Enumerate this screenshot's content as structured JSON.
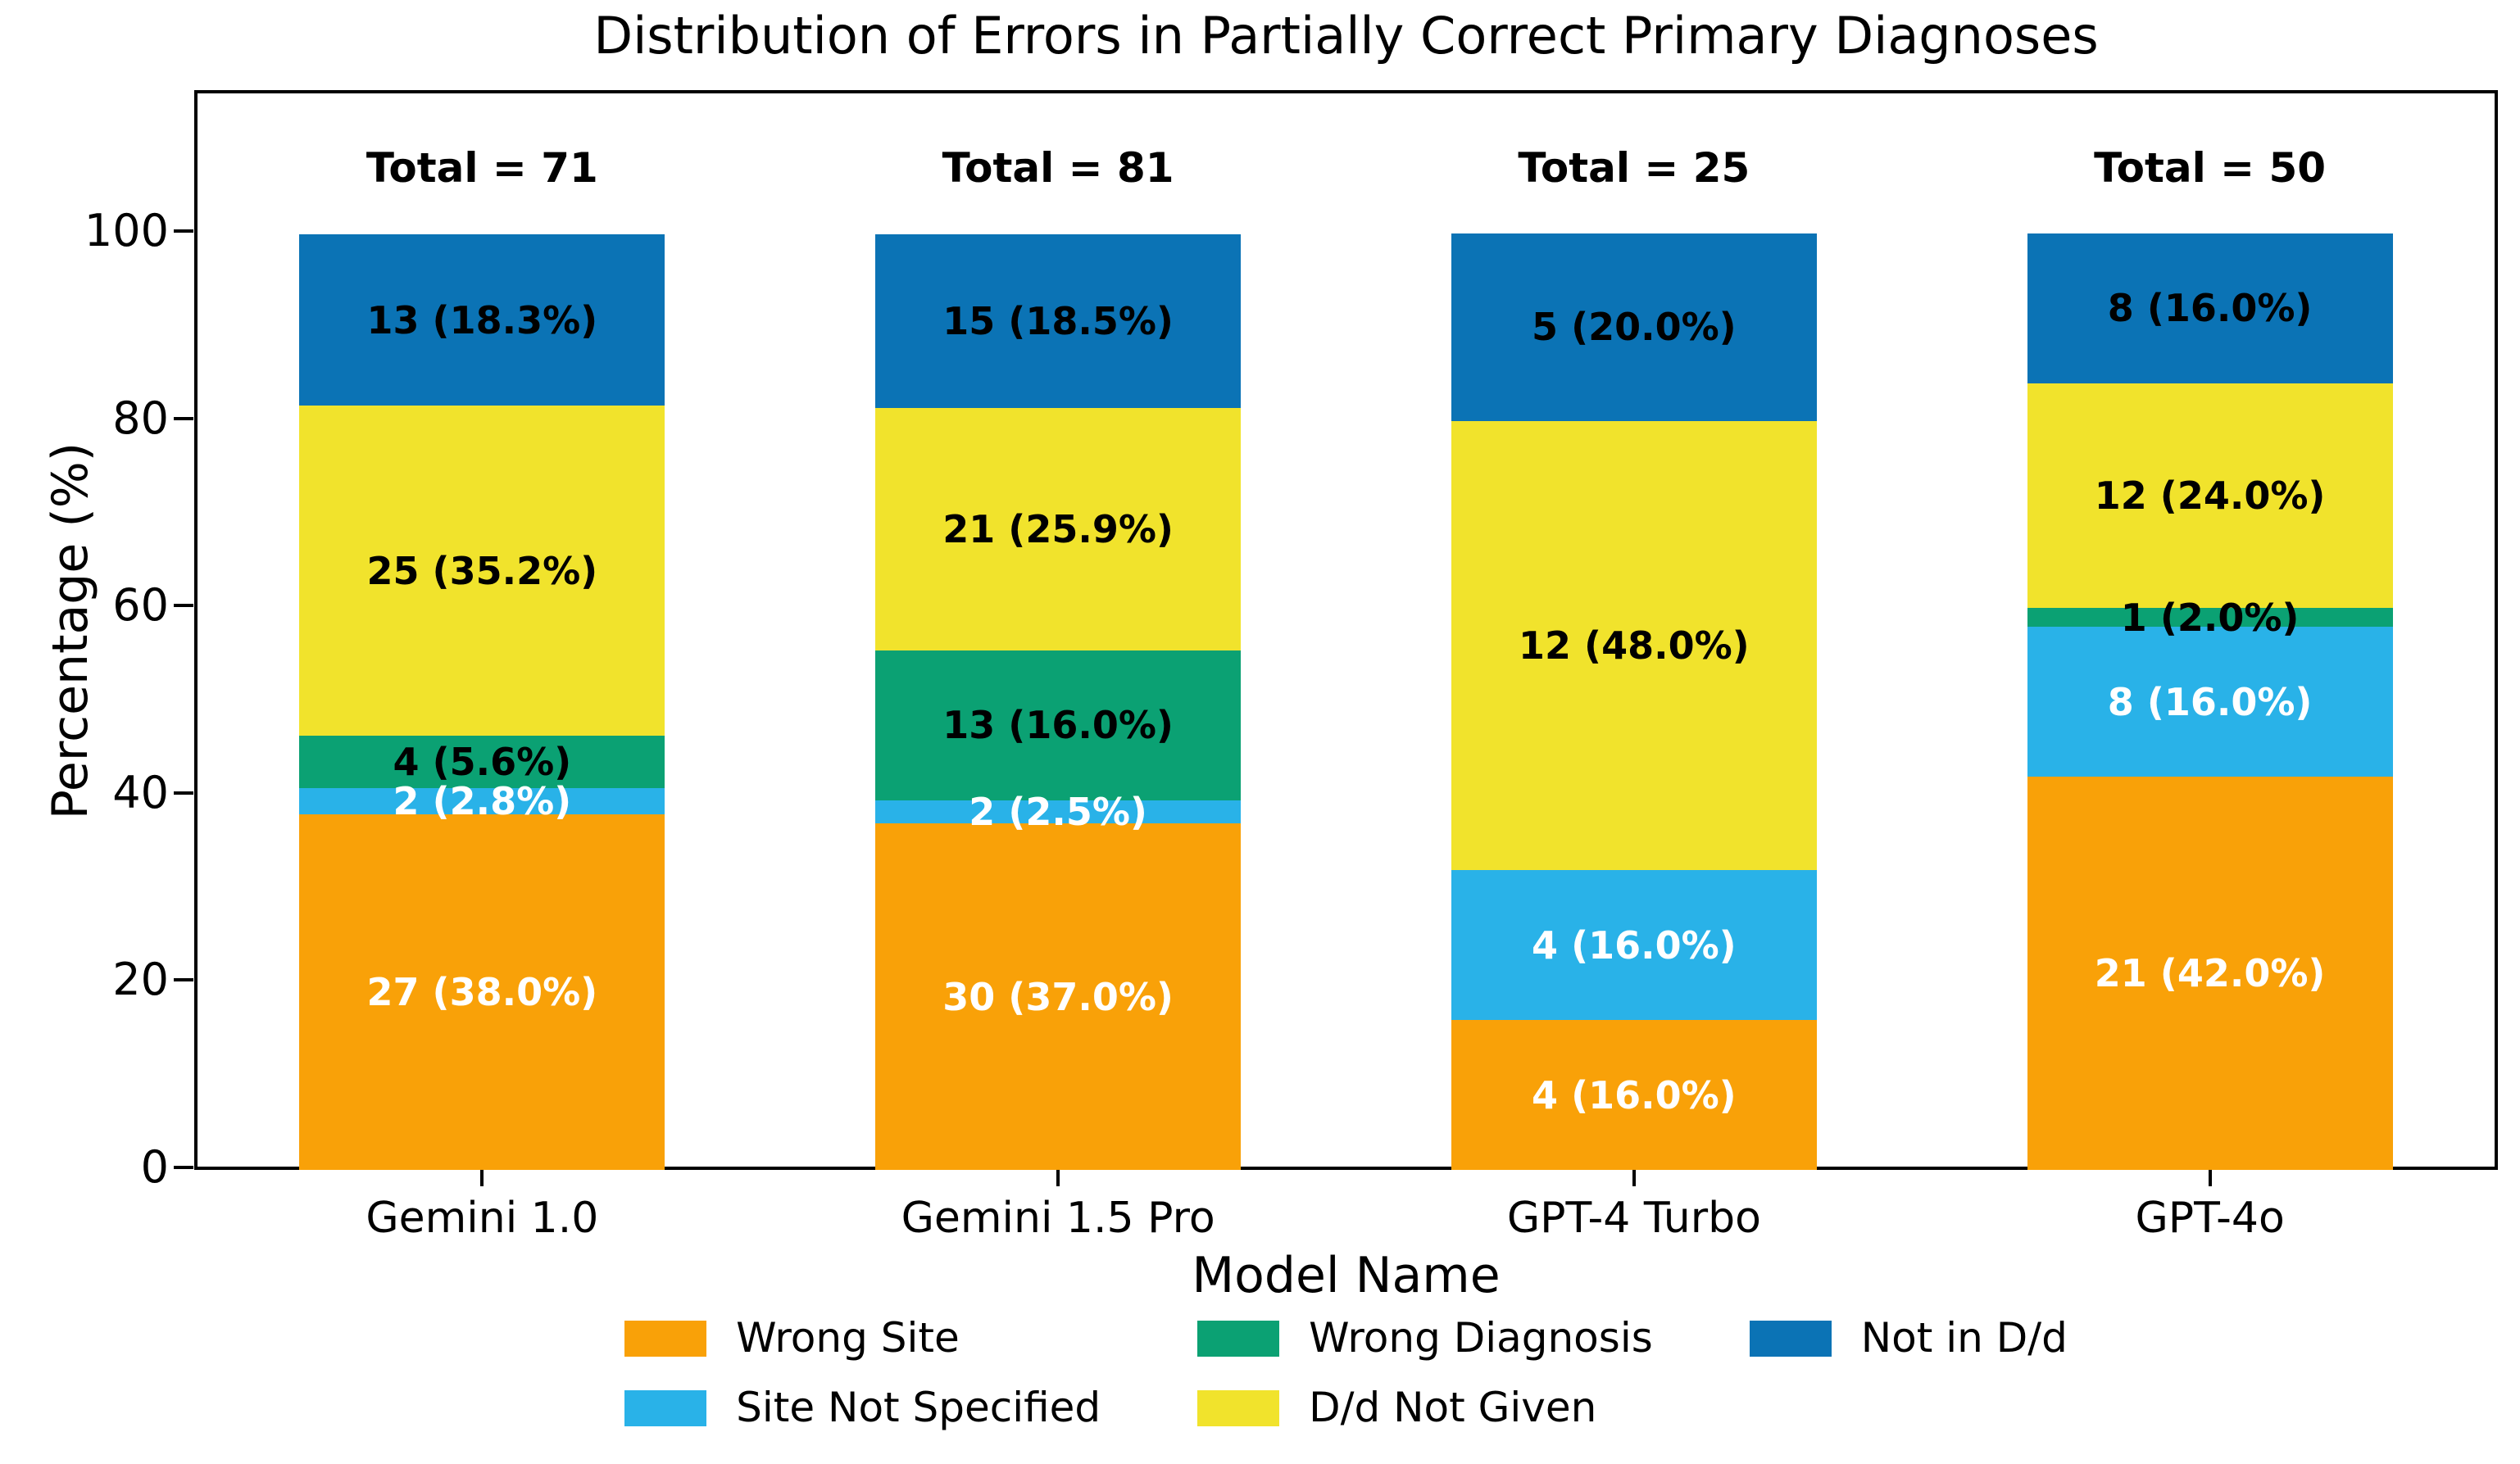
{
  "title": "Distribution of Errors in Partially Correct Primary Diagnoses",
  "y_axis": {
    "label": "Percentage (%)",
    "ticks": [
      0,
      20,
      40,
      60,
      80,
      100
    ],
    "range": [
      0,
      100
    ]
  },
  "x_axis": {
    "label": "Model Name"
  },
  "chart_data": {
    "type": "bar",
    "stacked": true,
    "grid": false,
    "legend_position": "bottom-center",
    "title": "Distribution of Errors in Partially Correct Primary Diagnoses",
    "xlabel": "Model Name",
    "ylabel": "Percentage (%)",
    "ylim": [
      0,
      100
    ],
    "categories": [
      "Gemini 1.0",
      "Gemini 1.5 Pro",
      "GPT-4 Turbo",
      "GPT-4o"
    ],
    "totals": [
      71,
      81,
      25,
      50
    ],
    "total_labels": [
      "Total = 71",
      "Total = 81",
      "Total = 25",
      "Total = 50"
    ],
    "series": [
      {
        "name": "Wrong Site",
        "color": "#F9A108",
        "text_color": "#ffffff",
        "counts": [
          27,
          30,
          4,
          21
        ],
        "pcts": [
          38.0,
          37.0,
          16.0,
          42.0
        ],
        "labels": [
          "27 (38.0%)",
          "30 (37.0%)",
          "4 (16.0%)",
          "21 (42.0%)"
        ]
      },
      {
        "name": "Site Not Specified",
        "color": "#29B2E8",
        "text_color": "#ffffff",
        "counts": [
          2,
          2,
          4,
          8
        ],
        "pcts": [
          2.8,
          2.5,
          16.0,
          16.0
        ],
        "labels": [
          "2 (2.8%)",
          "2 (2.5%)",
          "4 (16.0%)",
          "8 (16.0%)"
        ]
      },
      {
        "name": "Wrong Diagnosis",
        "color": "#0BA173",
        "text_color": "#000000",
        "counts": [
          4,
          13,
          0,
          1
        ],
        "pcts": [
          5.6,
          16.0,
          0,
          2.0
        ],
        "labels": [
          "4 (5.6%)",
          "13 (16.0%)",
          "",
          "1 (2.0%)"
        ]
      },
      {
        "name": "D/d Not Given",
        "color": "#F1E32C",
        "text_color": "#000000",
        "counts": [
          25,
          21,
          12,
          12
        ],
        "pcts": [
          35.2,
          25.9,
          48.0,
          24.0
        ],
        "labels": [
          "25 (35.2%)",
          "21 (25.9%)",
          "12 (48.0%)",
          "12 (24.0%)"
        ]
      },
      {
        "name": "Not in D/d",
        "color": "#0B73B5",
        "text_color": "#000000",
        "counts": [
          13,
          15,
          5,
          8
        ],
        "pcts": [
          18.3,
          18.5,
          20.0,
          16.0
        ],
        "labels": [
          "13 (18.3%)",
          "15 (18.5%)",
          "5 (20.0%)",
          "8 (16.0%)"
        ]
      }
    ]
  }
}
